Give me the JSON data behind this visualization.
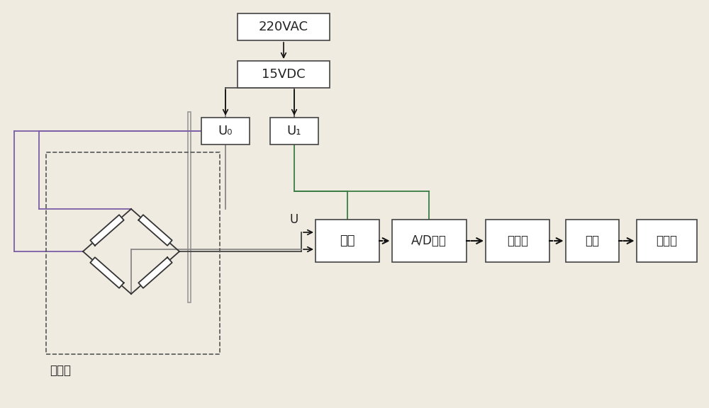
{
  "bg_color": "#f0ebe0",
  "box_facecolor": "#ffffff",
  "box_edgecolor": "#444444",
  "line_color": "#444444",
  "arrow_color": "#111111",
  "purple_color": "#7B5EA7",
  "green_color": "#3A7D44",
  "gray_color": "#888888",
  "font_color": "#222222",
  "vac_label": "220VAC",
  "vdc_label": "15VDC",
  "u0_label": "U₀",
  "u1_label": "U₁",
  "lv_label": "滤波",
  "ad_label": "A/D转换",
  "mcu_label": "单片机",
  "serial_label": "串口",
  "comp_label": "计算机",
  "sensor_label": "传感器"
}
